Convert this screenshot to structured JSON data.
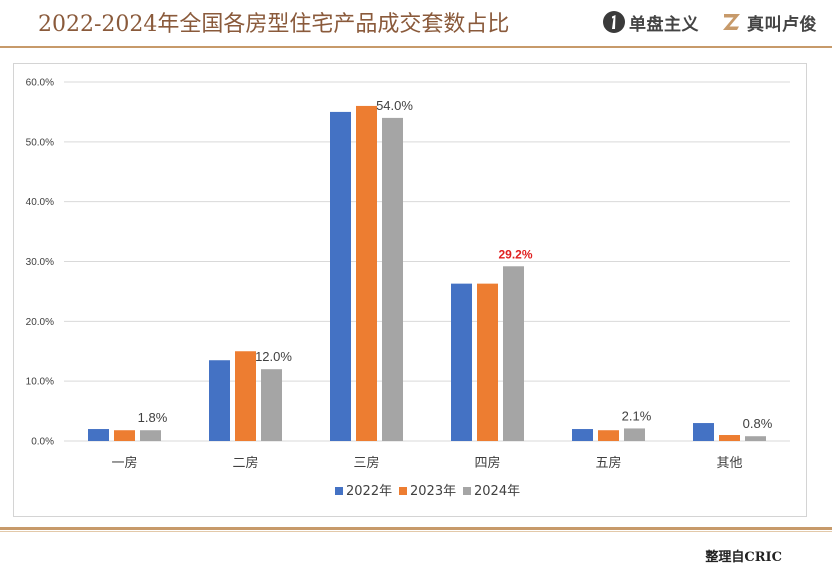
{
  "header": {
    "title": "2022-2024年全国各房型住宅产品成交套数占比",
    "brands": [
      {
        "name": "单盘主义",
        "icon": "single-disc-logo-icon",
        "icon_color": "#3a3a3a"
      },
      {
        "name": "真叫卢俊",
        "icon": "z-logo-icon",
        "icon_color": "#c79a6a"
      }
    ]
  },
  "footer": {
    "source": "整理自CRIC"
  },
  "colors": {
    "accent": "#c79a6a",
    "title": "#8a5a3b",
    "highlight_label": "#e02020"
  },
  "chart_data": {
    "type": "bar",
    "categories": [
      "一房",
      "二房",
      "三房",
      "四房",
      "五房",
      "其他"
    ],
    "series": [
      {
        "name": "2022年",
        "color": "#4472c4",
        "values": [
          2.0,
          13.5,
          55.0,
          26.3,
          2.0,
          3.0
        ]
      },
      {
        "name": "2023年",
        "color": "#ed7d31",
        "values": [
          1.8,
          15.0,
          56.0,
          26.3,
          1.8,
          1.0
        ]
      },
      {
        "name": "2024年",
        "color": "#a5a5a5",
        "values": [
          1.8,
          12.0,
          54.0,
          29.2,
          2.1,
          0.8
        ]
      }
    ],
    "data_labels": [
      {
        "category": "一房",
        "series": "2024年",
        "text": "1.8%",
        "highlight": false
      },
      {
        "category": "二房",
        "series": "2024年",
        "text": "12.0%",
        "highlight": false
      },
      {
        "category": "三房",
        "series": "2024年",
        "text": "54.0%",
        "highlight": false
      },
      {
        "category": "四房",
        "series": "2024年",
        "text": "29.2%",
        "highlight": true
      },
      {
        "category": "五房",
        "series": "2024年",
        "text": "2.1%",
        "highlight": false
      },
      {
        "category": "其他",
        "series": "2024年",
        "text": "0.8%",
        "highlight": false
      }
    ],
    "ylim": [
      0,
      60
    ],
    "y_ticks": [
      0,
      10,
      20,
      30,
      40,
      50,
      60
    ],
    "y_tick_labels": [
      "0.0%",
      "10.0%",
      "20.0%",
      "30.0%",
      "40.0%",
      "50.0%",
      "60.0%"
    ],
    "grid": true,
    "legend": "bottom"
  }
}
